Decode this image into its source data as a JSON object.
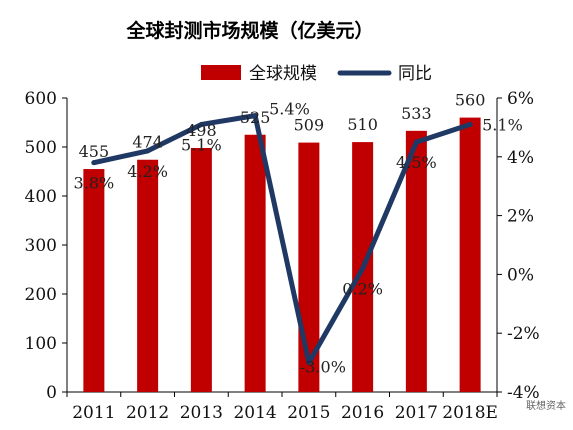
{
  "chart_data": {
    "type": "bar",
    "title": "全球封测市场规模（亿美元）",
    "categories": [
      "2011",
      "2012",
      "2013",
      "2014",
      "2015",
      "2016",
      "2017",
      "2018E"
    ],
    "series": [
      {
        "name": "全球规模",
        "type": "bar",
        "axis": "left",
        "color": "#c00000",
        "values": [
          455,
          474,
          498,
          525,
          509,
          510,
          533,
          560
        ]
      },
      {
        "name": "同比",
        "type": "line",
        "axis": "right",
        "color": "#1f3864",
        "values": [
          3.8,
          4.2,
          5.1,
          5.4,
          -3.0,
          0.2,
          4.5,
          5.1
        ]
      }
    ],
    "bar_labels": [
      "455",
      "474",
      "498",
      "525",
      "509",
      "510",
      "533",
      "560"
    ],
    "line_labels": [
      "3.8%",
      "4.2%",
      "5.1%",
      "5.4%",
      "-3.0%",
      "0.2%",
      "4.5%",
      "5.1%"
    ],
    "y_left": {
      "min": 0,
      "max": 600,
      "ticks": [
        "0",
        "100",
        "200",
        "300",
        "400",
        "500",
        "600"
      ]
    },
    "y_right": {
      "min": -4,
      "max": 6,
      "ticks": [
        "-4%",
        "-2%",
        "0%",
        "2%",
        "4%",
        "6%"
      ]
    },
    "legend_position": "top",
    "grid": false
  },
  "watermark": "联想资本"
}
